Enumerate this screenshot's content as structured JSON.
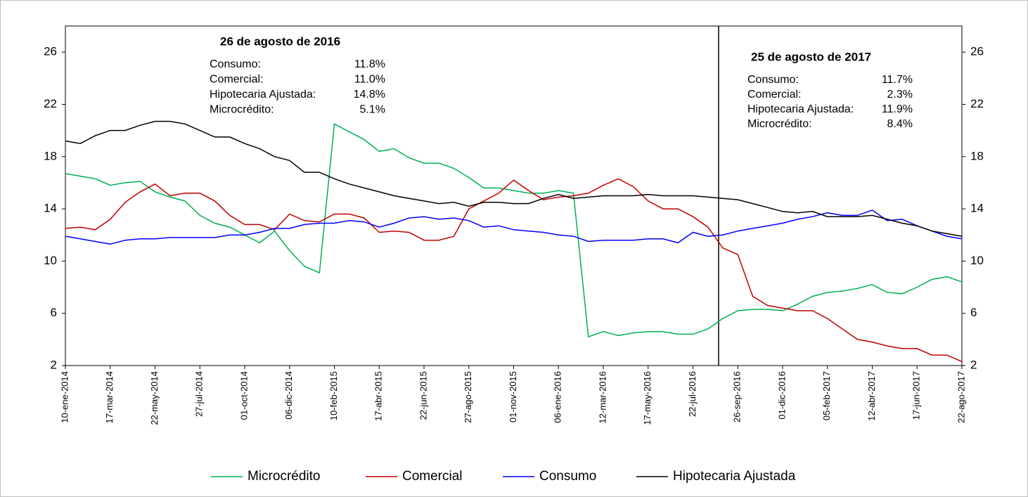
{
  "chart_data": {
    "type": "line",
    "categories": [
      "10-ene-2014",
      null,
      null,
      "17-mar-2014",
      null,
      null,
      "22-may-2014",
      null,
      null,
      "27-jul-2014",
      null,
      null,
      "01-oct-2014",
      null,
      null,
      "06-dic-2014",
      null,
      null,
      "10-feb-2015",
      null,
      null,
      "17-abr-2015",
      null,
      null,
      "22-jun-2015",
      null,
      null,
      "27-ago-2015",
      null,
      null,
      "01-nov-2015",
      null,
      null,
      "06-ene-2016",
      null,
      null,
      "12-mar-2016",
      null,
      null,
      "17-may-2016",
      null,
      null,
      "22-jul-2016",
      null,
      null,
      "26-sep-2016",
      null,
      null,
      "01-dic-2016",
      null,
      null,
      "05-feb-2017",
      null,
      null,
      "12-abr-2017",
      null,
      null,
      "17-jun-2017",
      null,
      null,
      "22-ago-2017"
    ],
    "series": [
      {
        "name": "Microcrédito",
        "color": "#00b050",
        "values": [
          16.7,
          16.5,
          16.3,
          15.8,
          16.0,
          16.1,
          15.3,
          14.9,
          14.6,
          13.5,
          12.9,
          12.6,
          12.0,
          11.4,
          12.3,
          10.8,
          9.6,
          9.1,
          20.5,
          19.9,
          19.3,
          18.4,
          18.6,
          17.9,
          17.5,
          17.5,
          17.1,
          16.4,
          15.6,
          15.6,
          15.4,
          15.2,
          15.2,
          15.4,
          15.2,
          4.2,
          4.6,
          4.3,
          4.5,
          4.6,
          4.6,
          4.4,
          4.4,
          4.8,
          5.6,
          6.2,
          6.3,
          6.3,
          6.2,
          6.7,
          7.3,
          7.6,
          7.7,
          7.9,
          8.2,
          7.6,
          7.5,
          8.0,
          8.6,
          8.8,
          8.4
        ]
      },
      {
        "name": "Comercial",
        "color": "#c00000",
        "values": [
          12.5,
          12.6,
          12.4,
          13.2,
          14.5,
          15.3,
          15.9,
          15.0,
          15.2,
          15.2,
          14.6,
          13.5,
          12.8,
          12.8,
          12.4,
          13.6,
          13.1,
          13.0,
          13.6,
          13.6,
          13.3,
          12.2,
          12.3,
          12.2,
          11.6,
          11.6,
          11.9,
          14.0,
          14.6,
          15.2,
          16.2,
          15.4,
          14.7,
          14.9,
          15.0,
          15.2,
          15.8,
          16.3,
          15.7,
          14.6,
          14.0,
          14.0,
          13.4,
          12.6,
          11.0,
          10.5,
          7.3,
          6.6,
          6.4,
          6.2,
          6.2,
          5.6,
          4.8,
          4.0,
          3.8,
          3.5,
          3.3,
          3.3,
          2.8,
          2.8,
          2.3
        ]
      },
      {
        "name": "Consumo",
        "color": "#0000ff",
        "values": [
          11.9,
          11.7,
          11.5,
          11.3,
          11.6,
          11.7,
          11.7,
          11.8,
          11.8,
          11.8,
          11.8,
          12.0,
          12.0,
          12.2,
          12.5,
          12.5,
          12.8,
          12.9,
          12.9,
          13.1,
          13.0,
          12.6,
          12.9,
          13.3,
          13.4,
          13.2,
          13.3,
          13.1,
          12.6,
          12.7,
          12.4,
          12.3,
          12.2,
          12.0,
          11.9,
          11.5,
          11.6,
          11.6,
          11.6,
          11.7,
          11.7,
          11.4,
          12.2,
          11.9,
          12.0,
          12.3,
          12.5,
          12.7,
          12.9,
          13.2,
          13.4,
          13.7,
          13.5,
          13.5,
          13.9,
          13.1,
          13.2,
          12.7,
          12.3,
          11.9,
          11.7
        ]
      },
      {
        "name": "Hipotecaria Ajustada",
        "color": "#000000",
        "values": [
          19.2,
          19.0,
          19.6,
          20.0,
          20.0,
          20.4,
          20.7,
          20.7,
          20.5,
          20.0,
          19.5,
          19.5,
          19.0,
          18.6,
          18.0,
          17.7,
          16.8,
          16.8,
          16.3,
          15.9,
          15.6,
          15.3,
          15.0,
          14.8,
          14.6,
          14.4,
          14.5,
          14.2,
          14.5,
          14.5,
          14.4,
          14.4,
          14.8,
          15.1,
          14.8,
          14.9,
          15.0,
          15.0,
          15.0,
          15.1,
          15.0,
          15.0,
          15.0,
          14.9,
          14.8,
          14.7,
          14.4,
          14.1,
          13.8,
          13.7,
          13.8,
          13.4,
          13.4,
          13.4,
          13.5,
          13.2,
          12.9,
          12.7,
          12.3,
          12.1,
          11.9
        ]
      }
    ],
    "ylim": [
      2,
      28
    ],
    "yticks": [
      2,
      6,
      10,
      14,
      18,
      22,
      26
    ],
    "y2lim": [
      2,
      28
    ],
    "y2ticks": [
      2,
      6,
      10,
      14,
      18,
      22,
      26
    ],
    "legend": "bottom",
    "annotations": [
      {
        "title": "26 de agosto de 2016",
        "rows": [
          {
            "label": "Consumo:",
            "value": "11.8%"
          },
          {
            "label": "Comercial:",
            "value": "11.0%"
          },
          {
            "label": "Hipotecaria Ajustada:",
            "value": "14.8%"
          },
          {
            "label": "Microcrédito:",
            "value": "5.1%"
          }
        ]
      },
      {
        "title": "25 de agosto de 2017",
        "rows": [
          {
            "label": "Consumo:",
            "value": "11.7%"
          },
          {
            "label": "Comercial:",
            "value": "2.3%"
          },
          {
            "label": "Hipotecaria Ajustada:",
            "value": "11.9%"
          },
          {
            "label": "Microcrédito:",
            "value": "8.4%"
          }
        ]
      }
    ]
  }
}
